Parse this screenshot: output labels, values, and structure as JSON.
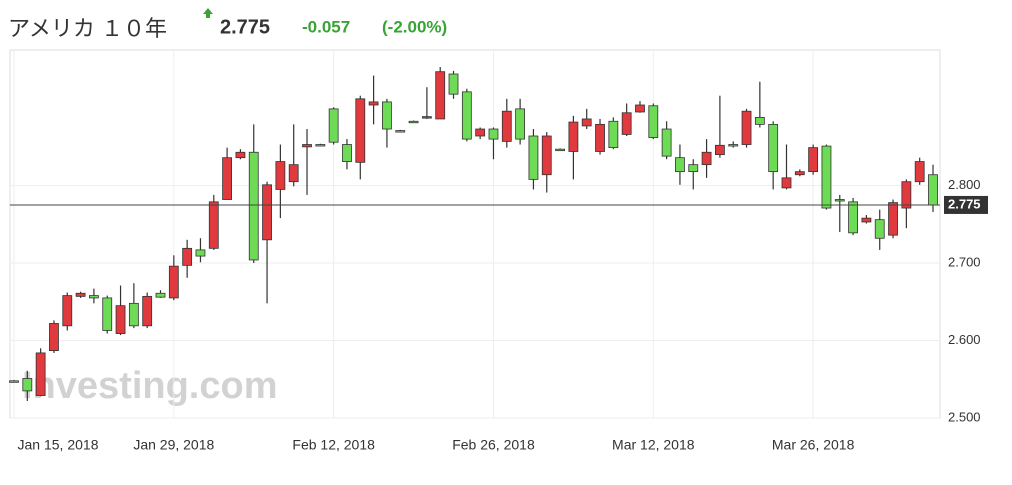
{
  "header": {
    "title": "アメリカ １０年",
    "price": 2.775,
    "change": "-0.057",
    "change_pct": "(-2.00%)"
  },
  "chart_data": {
    "type": "candlestick",
    "watermark": "Investing.com",
    "categories": [
      "Jan 15, 2018",
      null,
      null,
      null,
      null,
      null,
      null,
      null,
      null,
      null,
      null,
      null,
      "Jan 29, 2018",
      null,
      null,
      null,
      null,
      null,
      null,
      null,
      null,
      null,
      null,
      null,
      "Feb 12, 2018",
      null,
      null,
      null,
      null,
      null,
      null,
      null,
      null,
      null,
      null,
      null,
      "Feb 26, 2018",
      null,
      null,
      null,
      null,
      null,
      null,
      null,
      null,
      null,
      null,
      null,
      "Mar 12, 2018",
      null,
      null,
      null,
      null,
      null,
      null,
      null,
      null,
      null,
      null,
      null,
      "Mar 26, 2018",
      null,
      null,
      null,
      null,
      null,
      null,
      null,
      null,
      null
    ],
    "open": [
      2.548,
      2.551,
      2.529,
      2.587,
      2.619,
      2.657,
      2.658,
      2.655,
      2.609,
      2.648,
      2.619,
      2.661,
      2.655,
      2.697,
      2.717,
      2.719,
      2.782,
      2.836,
      2.843,
      2.73,
      2.795,
      2.805,
      2.85,
      2.853,
      2.899,
      2.853,
      2.83,
      2.904,
      2.908,
      2.871,
      2.883,
      2.888,
      2.886,
      2.944,
      2.921,
      2.864,
      2.873,
      2.857,
      2.899,
      2.864,
      2.814,
      2.847,
      2.844,
      2.877,
      2.844,
      2.883,
      2.866,
      2.895,
      2.903,
      2.873,
      2.836,
      2.827,
      2.827,
      2.84,
      2.853,
      2.853,
      2.888,
      2.879,
      2.797,
      2.814,
      2.818,
      2.851,
      2.782,
      2.779,
      2.753,
      2.756,
      2.736,
      2.771,
      2.805,
      2.814
    ],
    "high": [
      2.549,
      2.561,
      2.59,
      2.626,
      2.662,
      2.663,
      2.667,
      2.658,
      2.671,
      2.674,
      2.662,
      2.665,
      2.71,
      2.73,
      2.732,
      2.788,
      2.849,
      2.847,
      2.879,
      2.805,
      2.853,
      2.879,
      2.873,
      2.854,
      2.901,
      2.86,
      2.916,
      2.942,
      2.912,
      2.872,
      2.884,
      2.927,
      2.953,
      2.948,
      2.925,
      2.875,
      2.875,
      2.912,
      2.912,
      2.873,
      2.869,
      2.848,
      2.89,
      2.899,
      2.886,
      2.888,
      2.906,
      2.909,
      2.906,
      2.883,
      2.853,
      2.834,
      2.86,
      2.916,
      2.857,
      2.899,
      2.934,
      2.883,
      2.853,
      2.821,
      2.853,
      2.853,
      2.788,
      2.784,
      2.762,
      2.769,
      2.782,
      2.808,
      2.836,
      2.827
    ],
    "low": [
      2.547,
      2.522,
      2.528,
      2.584,
      2.613,
      2.655,
      2.648,
      2.609,
      2.607,
      2.616,
      2.616,
      2.655,
      2.652,
      2.681,
      2.701,
      2.717,
      2.782,
      2.834,
      2.7,
      2.648,
      2.758,
      2.799,
      2.788,
      2.852,
      2.853,
      2.821,
      2.808,
      2.879,
      2.849,
      2.87,
      2.882,
      2.886,
      2.886,
      2.912,
      2.857,
      2.86,
      2.834,
      2.849,
      2.853,
      2.795,
      2.791,
      2.846,
      2.808,
      2.873,
      2.84,
      2.847,
      2.864,
      2.894,
      2.86,
      2.834,
      2.801,
      2.795,
      2.81,
      2.836,
      2.849,
      2.849,
      2.875,
      2.795,
      2.795,
      2.812,
      2.814,
      2.769,
      2.74,
      2.736,
      2.751,
      2.717,
      2.732,
      2.745,
      2.801,
      2.766
    ],
    "close": [
      2.548,
      2.535,
      2.584,
      2.622,
      2.658,
      2.661,
      2.655,
      2.613,
      2.645,
      2.619,
      2.657,
      2.656,
      2.696,
      2.719,
      2.709,
      2.779,
      2.836,
      2.843,
      2.704,
      2.801,
      2.831,
      2.827,
      2.853,
      2.853,
      2.856,
      2.831,
      2.912,
      2.908,
      2.873,
      2.871,
      2.883,
      2.889,
      2.947,
      2.918,
      2.86,
      2.873,
      2.86,
      2.896,
      2.86,
      2.808,
      2.864,
      2.847,
      2.882,
      2.886,
      2.879,
      2.849,
      2.894,
      2.904,
      2.862,
      2.838,
      2.818,
      2.818,
      2.843,
      2.852,
      2.853,
      2.896,
      2.879,
      2.818,
      2.81,
      2.818,
      2.849,
      2.771,
      2.782,
      2.739,
      2.758,
      2.732,
      2.778,
      2.805,
      2.831,
      2.775
    ],
    "up_color": "#e0393e",
    "down_color": "#6ddb55",
    "ylim": [
      2.5,
      2.975
    ],
    "yticks": [
      {
        "value": 2.5,
        "label": "2.500"
      },
      {
        "value": 2.6,
        "label": "2.600"
      },
      {
        "value": 2.7,
        "label": "2.700"
      },
      {
        "value": 2.8,
        "label": "2.800"
      }
    ],
    "grid": true
  }
}
